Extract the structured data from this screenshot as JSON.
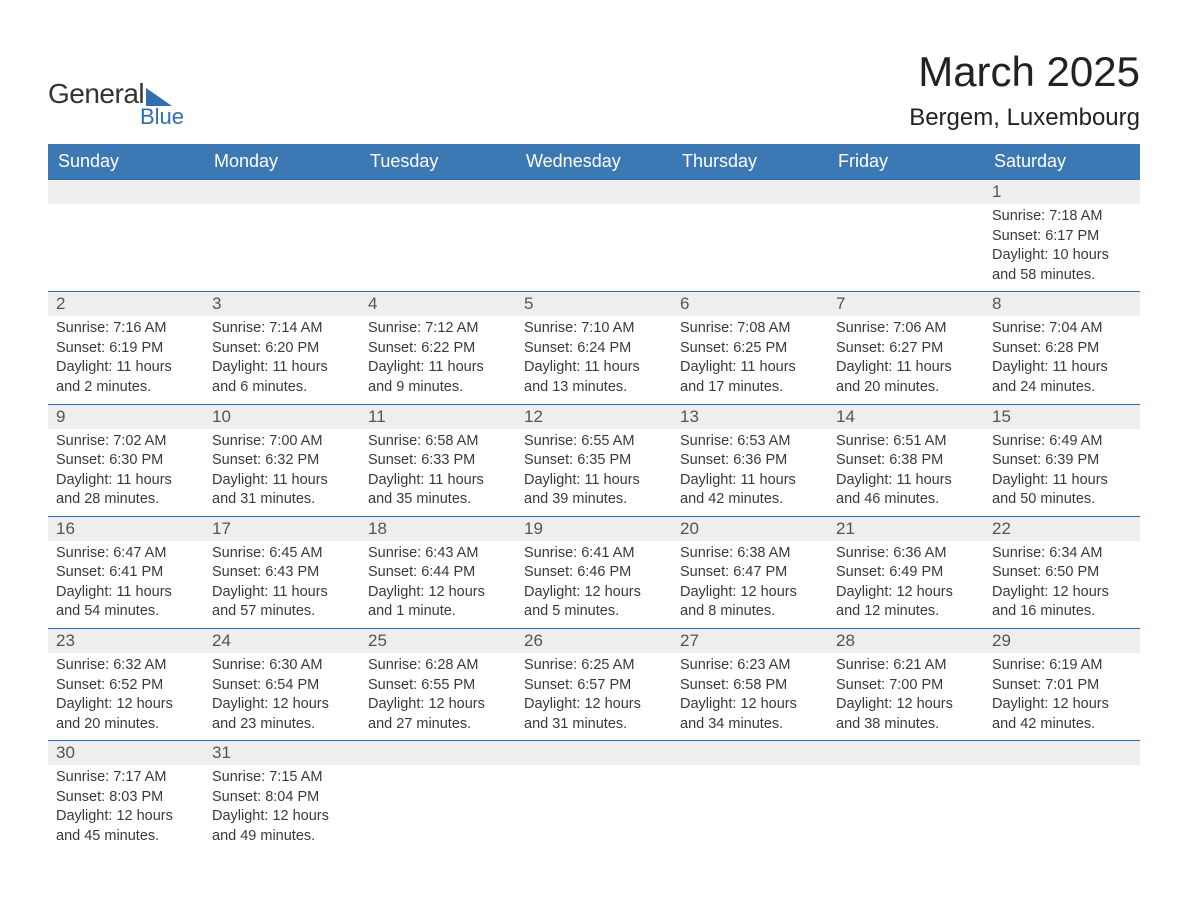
{
  "logo": {
    "word1": "General",
    "word2": "Blue",
    "brand_color": "#2f6fb0"
  },
  "title": {
    "month_year": "March 2025",
    "location": "Bergem, Luxembourg"
  },
  "colors": {
    "header_bg": "#3c78b4",
    "header_text": "#ffffff",
    "row_divider": "#2f6fb0",
    "daynum_bg": "#eeeeee",
    "body_text": "#3a3a3a",
    "page_bg": "#ffffff"
  },
  "typography": {
    "title_fontsize": 42,
    "location_fontsize": 24,
    "header_fontsize": 18,
    "daynum_fontsize": 17,
    "body_fontsize": 14.5
  },
  "day_headers": [
    "Sunday",
    "Monday",
    "Tuesday",
    "Wednesday",
    "Thursday",
    "Friday",
    "Saturday"
  ],
  "labels": {
    "sunrise": "Sunrise:",
    "sunset": "Sunset:",
    "daylight": "Daylight:"
  },
  "weeks": [
    [
      null,
      null,
      null,
      null,
      null,
      null,
      {
        "n": "1",
        "sunrise": "7:18 AM",
        "sunset": "6:17 PM",
        "daylight": "10 hours and 58 minutes."
      }
    ],
    [
      {
        "n": "2",
        "sunrise": "7:16 AM",
        "sunset": "6:19 PM",
        "daylight": "11 hours and 2 minutes."
      },
      {
        "n": "3",
        "sunrise": "7:14 AM",
        "sunset": "6:20 PM",
        "daylight": "11 hours and 6 minutes."
      },
      {
        "n": "4",
        "sunrise": "7:12 AM",
        "sunset": "6:22 PM",
        "daylight": "11 hours and 9 minutes."
      },
      {
        "n": "5",
        "sunrise": "7:10 AM",
        "sunset": "6:24 PM",
        "daylight": "11 hours and 13 minutes."
      },
      {
        "n": "6",
        "sunrise": "7:08 AM",
        "sunset": "6:25 PM",
        "daylight": "11 hours and 17 minutes."
      },
      {
        "n": "7",
        "sunrise": "7:06 AM",
        "sunset": "6:27 PM",
        "daylight": "11 hours and 20 minutes."
      },
      {
        "n": "8",
        "sunrise": "7:04 AM",
        "sunset": "6:28 PM",
        "daylight": "11 hours and 24 minutes."
      }
    ],
    [
      {
        "n": "9",
        "sunrise": "7:02 AM",
        "sunset": "6:30 PM",
        "daylight": "11 hours and 28 minutes."
      },
      {
        "n": "10",
        "sunrise": "7:00 AM",
        "sunset": "6:32 PM",
        "daylight": "11 hours and 31 minutes."
      },
      {
        "n": "11",
        "sunrise": "6:58 AM",
        "sunset": "6:33 PM",
        "daylight": "11 hours and 35 minutes."
      },
      {
        "n": "12",
        "sunrise": "6:55 AM",
        "sunset": "6:35 PM",
        "daylight": "11 hours and 39 minutes."
      },
      {
        "n": "13",
        "sunrise": "6:53 AM",
        "sunset": "6:36 PM",
        "daylight": "11 hours and 42 minutes."
      },
      {
        "n": "14",
        "sunrise": "6:51 AM",
        "sunset": "6:38 PM",
        "daylight": "11 hours and 46 minutes."
      },
      {
        "n": "15",
        "sunrise": "6:49 AM",
        "sunset": "6:39 PM",
        "daylight": "11 hours and 50 minutes."
      }
    ],
    [
      {
        "n": "16",
        "sunrise": "6:47 AM",
        "sunset": "6:41 PM",
        "daylight": "11 hours and 54 minutes."
      },
      {
        "n": "17",
        "sunrise": "6:45 AM",
        "sunset": "6:43 PM",
        "daylight": "11 hours and 57 minutes."
      },
      {
        "n": "18",
        "sunrise": "6:43 AM",
        "sunset": "6:44 PM",
        "daylight": "12 hours and 1 minute."
      },
      {
        "n": "19",
        "sunrise": "6:41 AM",
        "sunset": "6:46 PM",
        "daylight": "12 hours and 5 minutes."
      },
      {
        "n": "20",
        "sunrise": "6:38 AM",
        "sunset": "6:47 PM",
        "daylight": "12 hours and 8 minutes."
      },
      {
        "n": "21",
        "sunrise": "6:36 AM",
        "sunset": "6:49 PM",
        "daylight": "12 hours and 12 minutes."
      },
      {
        "n": "22",
        "sunrise": "6:34 AM",
        "sunset": "6:50 PM",
        "daylight": "12 hours and 16 minutes."
      }
    ],
    [
      {
        "n": "23",
        "sunrise": "6:32 AM",
        "sunset": "6:52 PM",
        "daylight": "12 hours and 20 minutes."
      },
      {
        "n": "24",
        "sunrise": "6:30 AM",
        "sunset": "6:54 PM",
        "daylight": "12 hours and 23 minutes."
      },
      {
        "n": "25",
        "sunrise": "6:28 AM",
        "sunset": "6:55 PM",
        "daylight": "12 hours and 27 minutes."
      },
      {
        "n": "26",
        "sunrise": "6:25 AM",
        "sunset": "6:57 PM",
        "daylight": "12 hours and 31 minutes."
      },
      {
        "n": "27",
        "sunrise": "6:23 AM",
        "sunset": "6:58 PM",
        "daylight": "12 hours and 34 minutes."
      },
      {
        "n": "28",
        "sunrise": "6:21 AM",
        "sunset": "7:00 PM",
        "daylight": "12 hours and 38 minutes."
      },
      {
        "n": "29",
        "sunrise": "6:19 AM",
        "sunset": "7:01 PM",
        "daylight": "12 hours and 42 minutes."
      }
    ],
    [
      {
        "n": "30",
        "sunrise": "7:17 AM",
        "sunset": "8:03 PM",
        "daylight": "12 hours and 45 minutes."
      },
      {
        "n": "31",
        "sunrise": "7:15 AM",
        "sunset": "8:04 PM",
        "daylight": "12 hours and 49 minutes."
      },
      null,
      null,
      null,
      null,
      null
    ]
  ]
}
